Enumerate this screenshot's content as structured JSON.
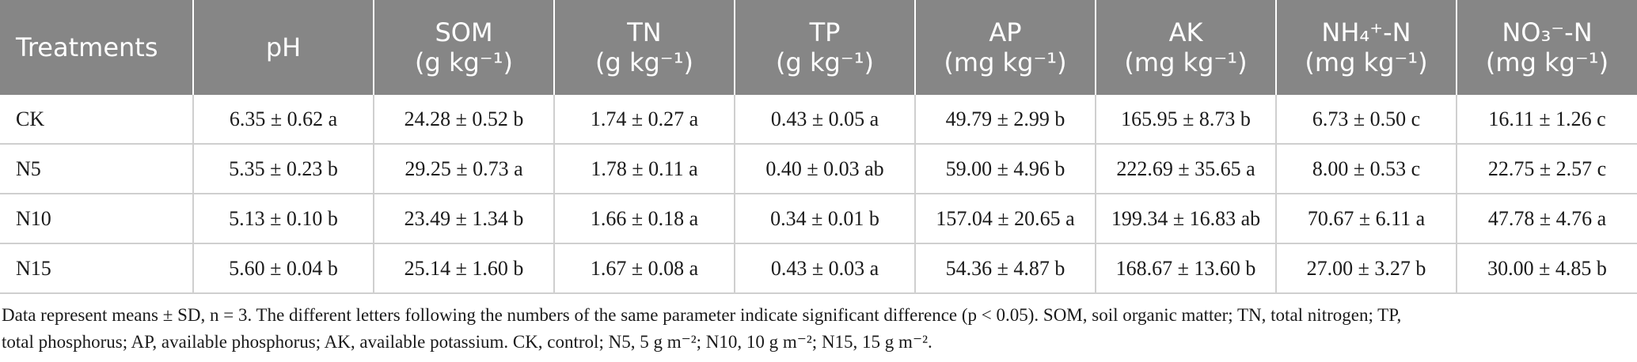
{
  "table": {
    "headers": [
      {
        "label": "Treatments",
        "unit": ""
      },
      {
        "label": "pH",
        "unit": ""
      },
      {
        "label": "SOM",
        "unit": "(g kg⁻¹)"
      },
      {
        "label": "TN",
        "unit": "(g kg⁻¹)"
      },
      {
        "label": "TP",
        "unit": "(g kg⁻¹)"
      },
      {
        "label": "AP",
        "unit": "(mg kg⁻¹)"
      },
      {
        "label": "AK",
        "unit": "(mg kg⁻¹)"
      },
      {
        "label": "NH₄⁺-N",
        "unit": "(mg kg⁻¹)"
      },
      {
        "label": "NO₃⁻-N",
        "unit": "(mg kg⁻¹)"
      }
    ],
    "rows": [
      [
        "CK",
        "6.35 ± 0.62 a",
        "24.28 ± 0.52 b",
        "1.74 ± 0.27 a",
        "0.43 ± 0.05 a",
        "49.79 ± 2.99 b",
        "165.95 ± 8.73 b",
        "6.73 ± 0.50 c",
        "16.11 ± 1.26 c"
      ],
      [
        "N5",
        "5.35 ± 0.23 b",
        "29.25 ± 0.73 a",
        "1.78 ± 0.11 a",
        "0.40 ± 0.03 ab",
        "59.00 ± 4.96 b",
        "222.69 ± 35.65 a",
        "8.00 ± 0.53 c",
        "22.75 ± 2.57 c"
      ],
      [
        "N10",
        "5.13 ± 0.10 b",
        "23.49 ± 1.34 b",
        "1.66 ± 0.18 a",
        "0.34 ± 0.01 b",
        "157.04 ± 20.65 a",
        "199.34 ± 16.83 ab",
        "70.67 ± 6.11 a",
        "47.78 ± 4.76 a"
      ],
      [
        "N15",
        "5.60 ± 0.04 b",
        "25.14 ± 1.60 b",
        "1.67 ± 0.08 a",
        "0.43 ± 0.03 a",
        "54.36 ± 4.87 b",
        "168.67 ± 13.60 b",
        "27.00 ± 3.27 b",
        "30.00 ± 4.85 b"
      ]
    ]
  },
  "footnote": {
    "line1": "Data represent means ± SD, n = 3. The different letters following the numbers of the same parameter indicate significant difference (p < 0.05). SOM, soil organic matter; TN, total nitrogen; TP,",
    "line2": "total phosphorus; AP, available phosphorus; AK, available potassium. CK, control; N5, 5 g m⁻²; N10, 10 g m⁻²; N15, 15 g m⁻²."
  },
  "colors": {
    "header_bg": "#868686",
    "header_text": "#ffffff",
    "grid_line": "#cfcfcf"
  }
}
